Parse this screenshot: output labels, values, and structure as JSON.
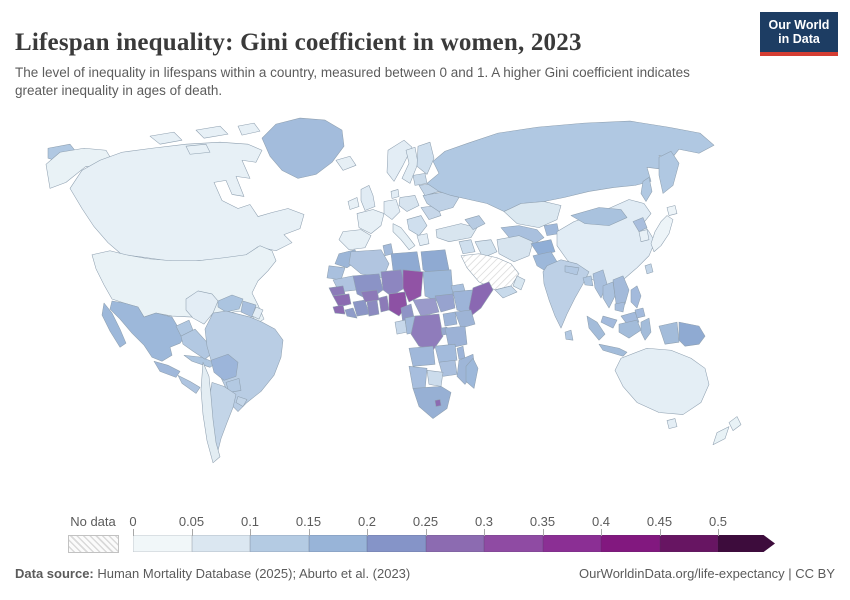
{
  "header": {
    "title": "Lifespan inequality: Gini coefficient in women, 2023",
    "subtitle": "The level of inequality in lifespans within a country, measured between 0 and 1. A higher Gini coefficient indicates greater inequality in ages of death."
  },
  "logo": {
    "line1": "Our World",
    "line2": "in Data",
    "bg_color": "#1d3d63",
    "accent_color": "#d53d32"
  },
  "legend": {
    "no_data_label": "No data",
    "ticks": [
      "0",
      "0.05",
      "0.1",
      "0.15",
      "0.2",
      "0.25",
      "0.3",
      "0.35",
      "0.4",
      "0.45",
      "0.5"
    ],
    "bin_colors": [
      "#f1f7f9",
      "#dbe7f1",
      "#b4cbe3",
      "#98b4d8",
      "#8594c8",
      "#8c6bb1",
      "#8f4ba3",
      "#8b2f94",
      "#82187f",
      "#671562",
      "#3d0c3c"
    ],
    "segment_width": 58.5,
    "arrow_width": 57
  },
  "footer": {
    "source_label": "Data source:",
    "source_text": " Human Mortality Database (2025); Aburto et al. (2023)",
    "right_text": "OurWorldinData.org/life-expectancy | CC BY"
  },
  "chart_data": {
    "type": "heatmap",
    "subtype": "choropleth-world-map",
    "title": "Lifespan inequality: Gini coefficient in women, 2023",
    "value_name": "Gini coefficient of lifespan inequality (women)",
    "scale_range": [
      0,
      0.5
    ],
    "scale_open_ended_above": 0.5,
    "bins": [
      {
        "range": [
          0,
          0.05
        ],
        "color": "#f1f7f9"
      },
      {
        "range": [
          0.05,
          0.1
        ],
        "color": "#dbe7f1"
      },
      {
        "range": [
          0.1,
          0.15
        ],
        "color": "#b4cbe3"
      },
      {
        "range": [
          0.15,
          0.2
        ],
        "color": "#98b4d8"
      },
      {
        "range": [
          0.2,
          0.25
        ],
        "color": "#8594c8"
      },
      {
        "range": [
          0.25,
          0.3
        ],
        "color": "#8c6bb1"
      },
      {
        "range": [
          0.3,
          0.35
        ],
        "color": "#8f4ba3"
      },
      {
        "range": [
          0.35,
          0.4
        ],
        "color": "#8b2f94"
      },
      {
        "range": [
          0.4,
          0.45
        ],
        "color": "#82187f"
      },
      {
        "range": [
          0.45,
          0.5
        ],
        "color": "#671562"
      },
      {
        "range": [
          0.5,
          null
        ],
        "color": "#3d0c3c"
      }
    ],
    "countries": {
      "canada": {
        "name": "Canada",
        "value": 0.06,
        "fill": "#e7f0f6"
      },
      "usa": {
        "name": "United States",
        "value": 0.07,
        "fill": "#e9f2f6"
      },
      "greenland": {
        "name": "Greenland",
        "value": 0.15,
        "fill": "#a3bcdc"
      },
      "mexico": {
        "name": "Mexico",
        "value": 0.16,
        "fill": "#9db8da"
      },
      "guatemala-honduras": {
        "name": "Guatemala/Honduras",
        "value": 0.17,
        "fill": "#a0b8da"
      },
      "costa-rica-panama": {
        "name": "Costa Rica/Panama",
        "value": 0.13,
        "fill": "#aec4e0"
      },
      "cuba": {
        "name": "Cuba",
        "value": 0.13,
        "fill": "#aec6e0"
      },
      "hispaniola": {
        "name": "Haiti/Dominican Rep.",
        "value": 0.17,
        "fill": "#9db8da"
      },
      "colombia": {
        "name": "Colombia",
        "value": 0.07,
        "fill": "#e3edf5"
      },
      "venezuela": {
        "name": "Venezuela",
        "value": 0.14,
        "fill": "#abc4e0"
      },
      "guyana-suriname": {
        "name": "Guyana/Suriname",
        "value": 0.15,
        "fill": "#a9c0de"
      },
      "french-guiana": {
        "name": "French Guiana",
        "value": 0.07,
        "fill": "#e3edf5"
      },
      "ecuador": {
        "name": "Ecuador",
        "value": 0.13,
        "fill": "#b0c7e1"
      },
      "peru": {
        "name": "Peru",
        "value": 0.13,
        "fill": "#b2c8e2"
      },
      "brazil": {
        "name": "Brazil",
        "value": 0.12,
        "fill": "#b9cde4"
      },
      "bolivia": {
        "name": "Bolivia",
        "value": 0.17,
        "fill": "#9cb5da"
      },
      "paraguay": {
        "name": "Paraguay",
        "value": 0.12,
        "fill": "#b3c9e2"
      },
      "uruguay": {
        "name": "Uruguay",
        "value": 0.1,
        "fill": "#c3d5e8"
      },
      "chile": {
        "name": "Chile",
        "value": 0.07,
        "fill": "#e3edf3"
      },
      "argentina": {
        "name": "Argentina",
        "value": 0.1,
        "fill": "#c3d5e8"
      },
      "iceland": {
        "name": "Iceland",
        "value": 0.05,
        "fill": "#e6eff5"
      },
      "ireland": {
        "name": "Ireland",
        "value": 0.05,
        "fill": "#e7f0f6"
      },
      "uk": {
        "name": "United Kingdom",
        "value": 0.06,
        "fill": "#e0ebf4"
      },
      "norway": {
        "name": "Norway",
        "value": 0.05,
        "fill": "#e3edf5"
      },
      "sweden": {
        "name": "Sweden",
        "value": 0.05,
        "fill": "#e1ecf4"
      },
      "finland": {
        "name": "Finland",
        "value": 0.08,
        "fill": "#cfdfee"
      },
      "denmark": {
        "name": "Denmark",
        "value": 0.06,
        "fill": "#e3edf5"
      },
      "france": {
        "name": "France",
        "value": 0.06,
        "fill": "#e7f0f6"
      },
      "spain-portugal": {
        "name": "Spain/Portugal",
        "value": 0.05,
        "fill": "#e7f0f6"
      },
      "germany": {
        "name": "Germany",
        "value": 0.06,
        "fill": "#e3edf5"
      },
      "italy": {
        "name": "Italy",
        "value": 0.05,
        "fill": "#e5eff5"
      },
      "poland": {
        "name": "Poland",
        "value": 0.08,
        "fill": "#d7e4ef"
      },
      "balkans": {
        "name": "Balkans",
        "value": 0.09,
        "fill": "#cfdfee"
      },
      "greece": {
        "name": "Greece",
        "value": 0.06,
        "fill": "#e3edf5"
      },
      "romania": {
        "name": "Romania",
        "value": 0.09,
        "fill": "#c7d7e9"
      },
      "ukraine": {
        "name": "Ukraine",
        "value": 0.12,
        "fill": "#bed1e6"
      },
      "belarus": {
        "name": "Belarus",
        "value": 0.1,
        "fill": "#c3d5e8"
      },
      "baltics": {
        "name": "Baltic states",
        "value": 0.09,
        "fill": "#cbdbea"
      },
      "turkey": {
        "name": "Turkey",
        "value": 0.08,
        "fill": "#d8e5ef"
      },
      "russia": {
        "name": "Russia",
        "value": 0.12,
        "fill": "#b0c8e2"
      },
      "kazakhstan": {
        "name": "Kazakhstan",
        "value": 0.07,
        "fill": "#dbe8f1"
      },
      "central-asia": {
        "name": "Uzbekistan/Turkmenistan",
        "value": 0.15,
        "fill": "#a9c0de"
      },
      "kyrgyzstan-tajikistan": {
        "name": "Kyrgyzstan/Tajikistan",
        "value": 0.16,
        "fill": "#9fb8da"
      },
      "caucasus": {
        "name": "Caucasus",
        "value": 0.12,
        "fill": "#b7cbe2"
      },
      "syria-levant": {
        "name": "Syria/Levant",
        "value": 0.1,
        "fill": "#cfdfee"
      },
      "iraq": {
        "name": "Iraq",
        "value": 0.09,
        "fill": "#d3e2ee"
      },
      "iran": {
        "name": "Iran",
        "value": 0.08,
        "fill": "#d7e4ef"
      },
      "saudi-arabia": {
        "name": "Saudi Arabia",
        "value": null,
        "fill": "no-data"
      },
      "yemen": {
        "name": "Yemen",
        "value": 0.11,
        "fill": "#c8daeb"
      },
      "oman": {
        "name": "Oman",
        "value": 0.08,
        "fill": "#d8e6f0"
      },
      "afghanistan": {
        "name": "Afghanistan",
        "value": 0.17,
        "fill": "#90aed6"
      },
      "pakistan": {
        "name": "Pakistan",
        "value": 0.16,
        "fill": "#9db8da"
      },
      "india": {
        "name": "India",
        "value": 0.12,
        "fill": "#bdd0e6"
      },
      "sri-lanka": {
        "name": "Sri Lanka",
        "value": 0.13,
        "fill": "#b2c8e2"
      },
      "nepal": {
        "name": "Nepal",
        "value": 0.13,
        "fill": "#b2c8e2"
      },
      "bangladesh": {
        "name": "Bangladesh",
        "value": 0.13,
        "fill": "#b0c7e1"
      },
      "myanmar": {
        "name": "Myanmar",
        "value": 0.15,
        "fill": "#a9c0de"
      },
      "thailand": {
        "name": "Thailand",
        "value": 0.14,
        "fill": "#abc2df"
      },
      "laos-vietnam": {
        "name": "Laos/Vietnam",
        "value": 0.15,
        "fill": "#a3bada"
      },
      "cambodia": {
        "name": "Cambodia",
        "value": 0.15,
        "fill": "#a6bddc"
      },
      "malaysia": {
        "name": "Malaysia",
        "value": 0.14,
        "fill": "#a3badc"
      },
      "china": {
        "name": "China",
        "value": 0.07,
        "fill": "#e1ecf5"
      },
      "mongolia": {
        "name": "Mongolia",
        "value": 0.14,
        "fill": "#a9c2de"
      },
      "north-korea": {
        "name": "North Korea",
        "value": 0.14,
        "fill": "#a9bedd"
      },
      "south-korea": {
        "name": "South Korea",
        "value": 0.05,
        "fill": "#e8f1f6"
      },
      "japan": {
        "name": "Japan",
        "value": 0.04,
        "fill": "#edf4f8"
      },
      "taiwan": {
        "name": "Taiwan",
        "value": 0.1,
        "fill": "#c3d5e8"
      },
      "philippines": {
        "name": "Philippines",
        "value": 0.15,
        "fill": "#a3badc"
      },
      "indonesia": {
        "name": "Indonesia",
        "value": 0.15,
        "fill": "#a3bcda"
      },
      "papua-new-guinea": {
        "name": "Papua New Guinea",
        "value": 0.18,
        "fill": "#8faad2"
      },
      "australia": {
        "name": "Australia",
        "value": 0.06,
        "fill": "#e4eef5"
      },
      "new-zealand": {
        "name": "New Zealand",
        "value": 0.05,
        "fill": "#e8f2f6"
      },
      "morocco": {
        "name": "Morocco",
        "value": 0.17,
        "fill": "#9cb6d8"
      },
      "western-sahara": {
        "name": "Western Sahara",
        "value": 0.15,
        "fill": "#a9c0de"
      },
      "mauritania": {
        "name": "Mauritania",
        "value": 0.13,
        "fill": "#b0c4e0"
      },
      "algeria": {
        "name": "Algeria",
        "value": 0.12,
        "fill": "#b1c5e0"
      },
      "tunisia": {
        "name": "Tunisia",
        "value": 0.14,
        "fill": "#a3bada"
      },
      "libya": {
        "name": "Libya",
        "value": 0.18,
        "fill": "#8faad2"
      },
      "egypt": {
        "name": "Egypt",
        "value": 0.18,
        "fill": "#8faad2"
      },
      "mali": {
        "name": "Mali",
        "value": 0.21,
        "fill": "#8b93c6"
      },
      "niger": {
        "name": "Niger",
        "value": 0.22,
        "fill": "#8d86c0"
      },
      "chad": {
        "name": "Chad",
        "value": 0.33,
        "fill": "#9153a5"
      },
      "sudan": {
        "name": "Sudan",
        "value": 0.16,
        "fill": "#9db8da"
      },
      "eritrea": {
        "name": "Eritrea",
        "value": 0.15,
        "fill": "#a9c0de"
      },
      "senegal": {
        "name": "Senegal",
        "value": 0.24,
        "fill": "#8c7bb8"
      },
      "guinea": {
        "name": "Guinea",
        "value": 0.27,
        "fill": "#8c6bb1"
      },
      "sierra-leone": {
        "name": "Sierra Leone",
        "value": 0.27,
        "fill": "#8c6bb1"
      },
      "liberia": {
        "name": "Liberia",
        "value": 0.21,
        "fill": "#8f9cc9"
      },
      "cote-divoire": {
        "name": "Cote d'Ivoire",
        "value": 0.22,
        "fill": "#8c96c6"
      },
      "ghana": {
        "name": "Ghana",
        "value": 0.22,
        "fill": "#8c8ac0"
      },
      "togo-benin": {
        "name": "Togo/Benin",
        "value": 0.25,
        "fill": "#8c7bb8"
      },
      "burkina-faso": {
        "name": "Burkina Faso",
        "value": 0.25,
        "fill": "#8d7ab8"
      },
      "nigeria": {
        "name": "Nigeria",
        "value": 0.32,
        "fill": "#8d51a4"
      },
      "cameroon": {
        "name": "Cameroon",
        "value": 0.22,
        "fill": "#8f94c6"
      },
      "central-african-republic": {
        "name": "Central African Republic",
        "value": 0.21,
        "fill": "#9a9aca"
      },
      "south-sudan": {
        "name": "South Sudan",
        "value": 0.2,
        "fill": "#97a3cf"
      },
      "ethiopia": {
        "name": "Ethiopia",
        "value": 0.16,
        "fill": "#9db4d8"
      },
      "somalia": {
        "name": "Somalia",
        "value": 0.28,
        "fill": "#8a68b2"
      },
      "kenya": {
        "name": "Kenya",
        "value": 0.16,
        "fill": "#9eb4d6"
      },
      "uganda": {
        "name": "Uganda",
        "value": 0.17,
        "fill": "#9db4d8"
      },
      "gabon": {
        "name": "Gabon",
        "value": 0.1,
        "fill": "#c7d8ea"
      },
      "congo": {
        "name": "Congo",
        "value": 0.15,
        "fill": "#a3bada"
      },
      "drc": {
        "name": "Democratic Republic of Congo",
        "value": 0.26,
        "fill": "#8f7cbb"
      },
      "rwanda-burundi": {
        "name": "Rwanda/Burundi",
        "value": 0.19,
        "fill": "#97a8cf"
      },
      "tanzania": {
        "name": "Tanzania",
        "value": 0.17,
        "fill": "#9cb2d6"
      },
      "angola": {
        "name": "Angola",
        "value": 0.16,
        "fill": "#a0b8da"
      },
      "zambia": {
        "name": "Zambia",
        "value": 0.16,
        "fill": "#a3bbdc"
      },
      "malawi": {
        "name": "Malawi",
        "value": 0.16,
        "fill": "#9db4d8"
      },
      "mozambique": {
        "name": "Mozambique",
        "value": 0.17,
        "fill": "#9eb6d8"
      },
      "zimbabwe": {
        "name": "Zimbabwe",
        "value": 0.15,
        "fill": "#abc0de"
      },
      "botswana": {
        "name": "Botswana",
        "value": 0.11,
        "fill": "#ccdcec"
      },
      "namibia": {
        "name": "Namibia",
        "value": 0.15,
        "fill": "#a7bede"
      },
      "south-africa": {
        "name": "South Africa",
        "value": 0.17,
        "fill": "#97b0d4"
      },
      "lesotho": {
        "name": "Lesotho/Eswatini",
        "value": 0.27,
        "fill": "#8c6bb1"
      },
      "madagascar": {
        "name": "Madagascar",
        "value": 0.16,
        "fill": "#9db8da"
      }
    }
  }
}
